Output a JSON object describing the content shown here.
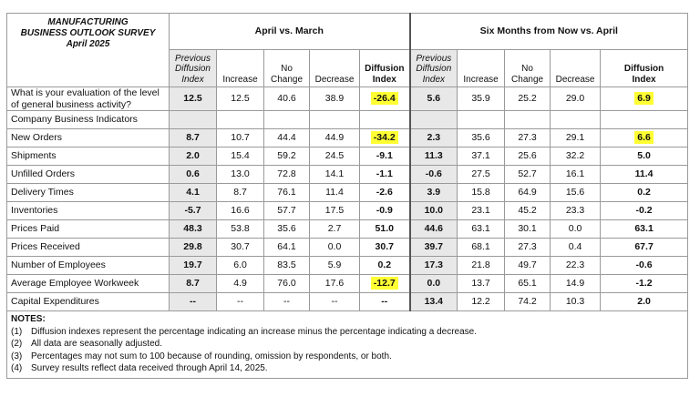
{
  "survey": {
    "title_lines": [
      "MANUFACTURING",
      "BUSINESS OUTLOOK SURVEY",
      "April 2025"
    ],
    "group_current": "April vs. March",
    "group_future": "Six Months from Now vs. April"
  },
  "columns": {
    "prev_lines": [
      "Previous",
      "Diffusion",
      "Index"
    ],
    "increase": "Increase",
    "nochange_lines": [
      "No",
      "Change"
    ],
    "decrease": "Decrease",
    "diffusion_lines": [
      "Diffusion",
      "Index"
    ]
  },
  "highlight_color": "#ffff33",
  "general_question": {
    "label_lines": [
      "What is your evaluation of the level",
      "of general business activity?"
    ],
    "cells": [
      "12.5",
      "12.5",
      "40.6",
      "38.9",
      "-26.4",
      "5.6",
      "35.9",
      "25.2",
      "29.0",
      "6.9"
    ],
    "highlight": [
      4,
      9
    ]
  },
  "section_label": "Company Business Indicators",
  "rows": [
    {
      "label": "New Orders",
      "cells": [
        "8.7",
        "10.7",
        "44.4",
        "44.9",
        "-34.2",
        "2.3",
        "35.6",
        "27.3",
        "29.1",
        "6.6"
      ],
      "highlight": [
        4,
        9
      ]
    },
    {
      "label": "Shipments",
      "cells": [
        "2.0",
        "15.4",
        "59.2",
        "24.5",
        "-9.1",
        "11.3",
        "37.1",
        "25.6",
        "32.2",
        "5.0"
      ],
      "highlight": []
    },
    {
      "label": "Unfilled Orders",
      "cells": [
        "0.6",
        "13.0",
        "72.8",
        "14.1",
        "-1.1",
        "-0.6",
        "27.5",
        "52.7",
        "16.1",
        "11.4"
      ],
      "highlight": []
    },
    {
      "label": "Delivery Times",
      "cells": [
        "4.1",
        "8.7",
        "76.1",
        "11.4",
        "-2.6",
        "3.9",
        "15.8",
        "64.9",
        "15.6",
        "0.2"
      ],
      "highlight": []
    },
    {
      "label": "Inventories",
      "cells": [
        "-5.7",
        "16.6",
        "57.7",
        "17.5",
        "-0.9",
        "10.0",
        "23.1",
        "45.2",
        "23.3",
        "-0.2"
      ],
      "highlight": []
    },
    {
      "label": "Prices Paid",
      "cells": [
        "48.3",
        "53.8",
        "35.6",
        "2.7",
        "51.0",
        "44.6",
        "63.1",
        "30.1",
        "0.0",
        "63.1"
      ],
      "highlight": []
    },
    {
      "label": "Prices Received",
      "cells": [
        "29.8",
        "30.7",
        "64.1",
        "0.0",
        "30.7",
        "39.7",
        "68.1",
        "27.3",
        "0.4",
        "67.7"
      ],
      "highlight": []
    },
    {
      "label": "Number of Employees",
      "cells": [
        "19.7",
        "6.0",
        "83.5",
        "5.9",
        "0.2",
        "17.3",
        "21.8",
        "49.7",
        "22.3",
        "-0.6"
      ],
      "highlight": []
    },
    {
      "label": "Average Employee Workweek",
      "cells": [
        "8.7",
        "4.9",
        "76.0",
        "17.6",
        "-12.7",
        "0.0",
        "13.7",
        "65.1",
        "14.9",
        "-1.2"
      ],
      "highlight": [
        4
      ]
    },
    {
      "label": "Capital Expenditures",
      "cells": [
        "--",
        "--",
        "--",
        "--",
        "--",
        "13.4",
        "12.2",
        "74.2",
        "10.3",
        "2.0"
      ],
      "highlight": []
    }
  ],
  "notes": {
    "heading": "NOTES:",
    "items": [
      {
        "num": "(1)",
        "text": "Diffusion indexes represent the percentage indicating an increase minus the percentage indicating a decrease."
      },
      {
        "num": "(2)",
        "text": "All data are seasonally adjusted."
      },
      {
        "num": "(3)",
        "text": "Percentages may not sum to 100 because of rounding, omission by respondents, or both."
      },
      {
        "num": "(4)",
        "text": "Survey results reflect data received through April 14, 2025."
      }
    ]
  }
}
